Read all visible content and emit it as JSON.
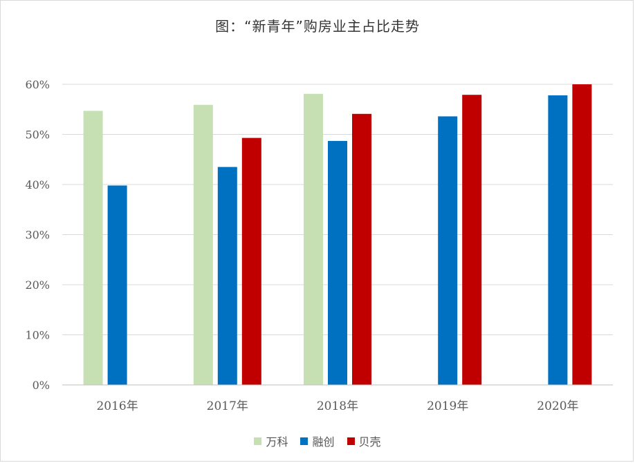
{
  "chart_data": {
    "type": "bar",
    "title": "图：“新青年”购房业主占比走势",
    "xlabel": "",
    "ylabel": "",
    "categories": [
      "2016年",
      "2017年",
      "2018年",
      "2019年",
      "2020年"
    ],
    "series": [
      {
        "name": "万科",
        "color": "#c6e0b4",
        "values": [
          54.7,
          55.9,
          58.1,
          null,
          null
        ]
      },
      {
        "name": "融创",
        "color": "#0070c0",
        "values": [
          39.8,
          43.5,
          48.7,
          53.6,
          57.8
        ]
      },
      {
        "name": "贝壳",
        "color": "#c00000",
        "values": [
          null,
          49.3,
          54.1,
          57.9,
          60.0
        ]
      }
    ],
    "ylim": [
      0,
      60
    ],
    "yticks": [
      0,
      10,
      20,
      30,
      40,
      50,
      60
    ],
    "ytick_labels": [
      "0%",
      "10%",
      "20%",
      "30%",
      "40%",
      "50%",
      "60%"
    ],
    "grid": true,
    "legend_position": "bottom"
  }
}
